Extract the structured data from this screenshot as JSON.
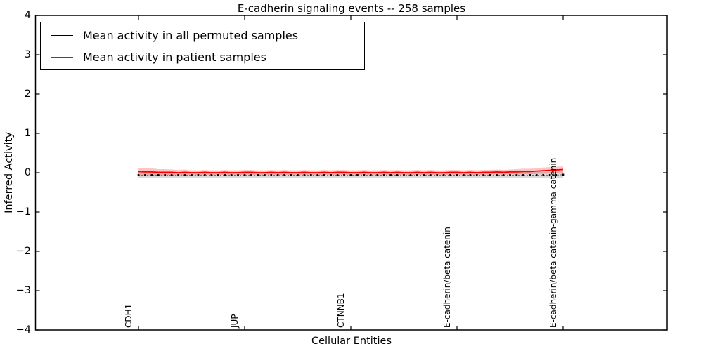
{
  "title": "E-cadherin signaling events -- 258 samples",
  "axes": {
    "x": {
      "label": "Cellular Entities",
      "tick_labels": [
        "CDH1",
        "JUP",
        "CTNNB1",
        "E-cadherin/beta catenin",
        "E-cadherin/beta catenin-gamma catenin"
      ]
    },
    "y": {
      "label": "Inferred Activity",
      "tick_labels": [
        "4",
        "3",
        "2",
        "1",
        "0",
        "−1",
        "−2",
        "−3",
        "−4"
      ]
    }
  },
  "legend": {
    "entries": [
      {
        "label": "Mean activity in all permuted samples",
        "color": "#000000"
      },
      {
        "label": "Mean activity in patient samples",
        "color": "#ff0000"
      }
    ],
    "position": "upper left"
  },
  "colors": {
    "axis": "#000000",
    "permuted_line": "#000000",
    "permuted_band": "rgba(120,120,120,0.28)",
    "patient_line": "#ff0000",
    "patient_band": "rgba(255,60,60,0.30)",
    "background": "#ffffff"
  },
  "chart_data": {
    "type": "line",
    "title": "E-cadherin signaling events -- 258 samples",
    "xlabel": "Cellular Entities",
    "ylabel": "Inferred Activity",
    "ylim": [
      -4,
      4
    ],
    "y_ticks": [
      4,
      3,
      2,
      1,
      0,
      -1,
      -2,
      -3,
      -4
    ],
    "grid": false,
    "legend_position": "upper left",
    "n_points": 65,
    "labeled_indices": [
      0,
      16,
      32,
      48,
      64
    ],
    "categories": [
      "CDH1",
      "JUP",
      "CTNNB1",
      "E-cadherin/beta catenin",
      "E-cadherin/beta catenin-gamma catenin"
    ],
    "series": [
      {
        "name": "Mean activity in all permuted samples",
        "color": "#000000",
        "style": "dotted-with-square-markers",
        "band_halfwidth": 0.08,
        "values": [
          -0.06,
          -0.06,
          -0.06,
          -0.06,
          -0.06,
          -0.06,
          -0.06,
          -0.06,
          -0.06,
          -0.06,
          -0.06,
          -0.06,
          -0.06,
          -0.06,
          -0.06,
          -0.06,
          -0.06,
          -0.06,
          -0.06,
          -0.06,
          -0.06,
          -0.06,
          -0.06,
          -0.06,
          -0.06,
          -0.06,
          -0.06,
          -0.06,
          -0.06,
          -0.06,
          -0.06,
          -0.06,
          -0.06,
          -0.06,
          -0.06,
          -0.06,
          -0.06,
          -0.06,
          -0.06,
          -0.06,
          -0.06,
          -0.06,
          -0.06,
          -0.06,
          -0.06,
          -0.06,
          -0.06,
          -0.06,
          -0.06,
          -0.06,
          -0.06,
          -0.06,
          -0.06,
          -0.06,
          -0.06,
          -0.06,
          -0.06,
          -0.06,
          -0.06,
          -0.06,
          -0.06,
          -0.06,
          -0.06,
          -0.06,
          -0.05
        ]
      },
      {
        "name": "Mean activity in patient samples",
        "color": "#ff0000",
        "style": "solid",
        "values": [
          0.03,
          0.02,
          0.02,
          0.01,
          0.01,
          0.01,
          0.0,
          0.01,
          0.0,
          0.0,
          0.01,
          0.0,
          0.0,
          0.01,
          0.0,
          0.0,
          0.01,
          0.01,
          0.0,
          0.0,
          0.01,
          0.0,
          0.01,
          0.0,
          0.0,
          0.01,
          0.0,
          0.0,
          0.01,
          0.0,
          0.01,
          0.01,
          0.0,
          0.0,
          0.01,
          0.0,
          0.0,
          0.01,
          0.0,
          0.01,
          0.0,
          0.0,
          0.01,
          0.0,
          0.01,
          0.0,
          0.0,
          0.01,
          0.01,
          0.0,
          0.01,
          0.0,
          0.01,
          0.01,
          0.02,
          0.01,
          0.02,
          0.02,
          0.03,
          0.03,
          0.04,
          0.05,
          0.06,
          0.07,
          0.08
        ],
        "band_halfwidths": [
          0.1,
          0.09,
          0.09,
          0.08,
          0.08,
          0.07,
          0.07,
          0.07,
          0.06,
          0.06,
          0.06,
          0.06,
          0.06,
          0.06,
          0.06,
          0.06,
          0.06,
          0.06,
          0.06,
          0.06,
          0.06,
          0.06,
          0.06,
          0.06,
          0.06,
          0.06,
          0.06,
          0.06,
          0.06,
          0.06,
          0.06,
          0.06,
          0.06,
          0.06,
          0.06,
          0.06,
          0.06,
          0.06,
          0.06,
          0.06,
          0.06,
          0.06,
          0.06,
          0.06,
          0.06,
          0.06,
          0.06,
          0.06,
          0.06,
          0.06,
          0.06,
          0.06,
          0.06,
          0.06,
          0.06,
          0.06,
          0.06,
          0.07,
          0.07,
          0.07,
          0.07,
          0.08,
          0.08,
          0.08,
          0.08
        ]
      }
    ]
  }
}
